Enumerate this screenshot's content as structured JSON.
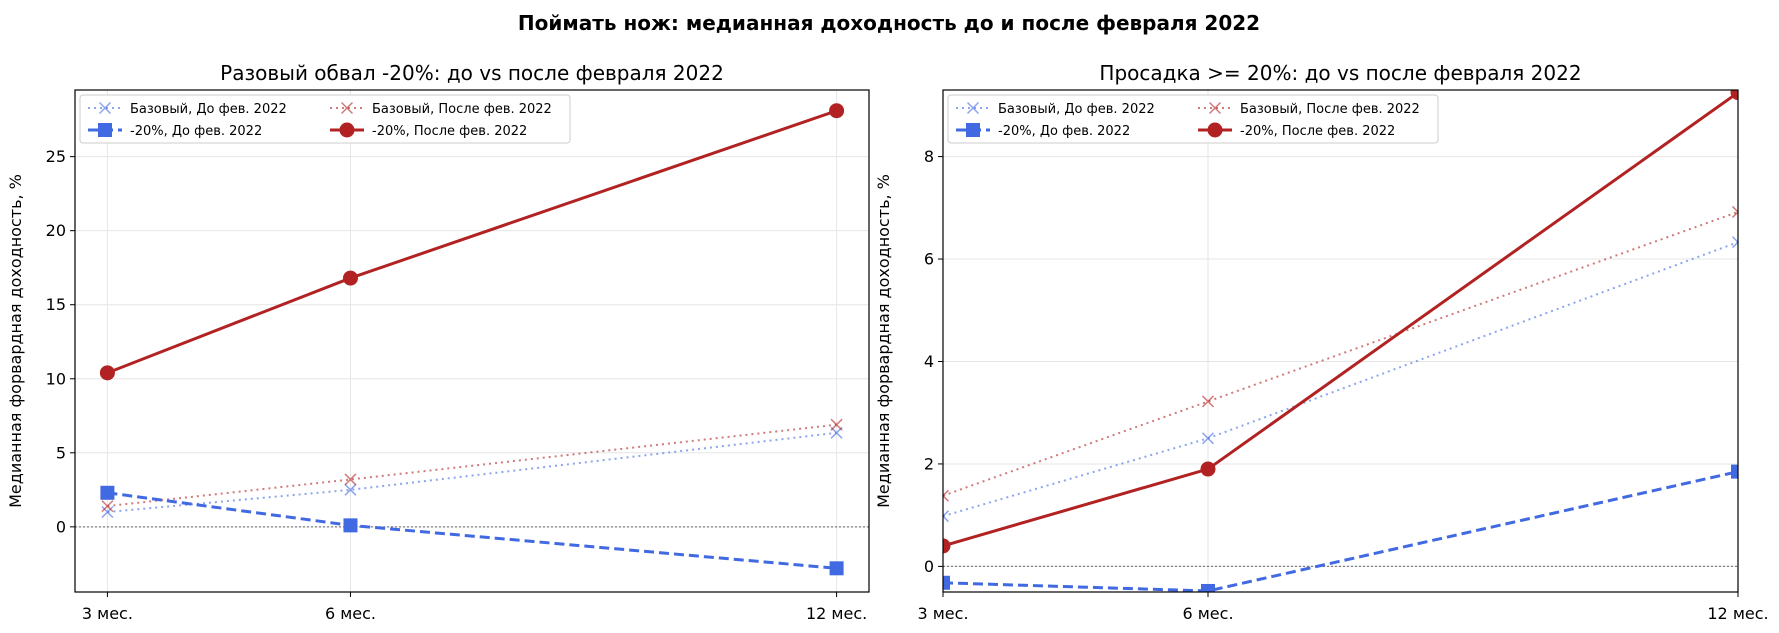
{
  "suptitle": "Поймать нож: медианная доходность до и после февраля 2022",
  "chart_data": [
    {
      "type": "line",
      "title": "Разовый обвал -20%: до vs после февраля 2022",
      "ylabel": "Медианная форвардная доходность, %",
      "xlabel": "",
      "x": [
        3,
        6,
        12
      ],
      "x_tick_labels": [
        "3 мес.",
        "6 мес.",
        "12 мес."
      ],
      "xlim": [
        2.6,
        12.4
      ],
      "ylim": [
        -4.4,
        29.5
      ],
      "y_ticks": [
        0,
        5,
        10,
        15,
        20,
        25
      ],
      "grid": true,
      "zero_line": true,
      "legend_position": "top-left",
      "series": [
        {
          "name": "Базовый, До фев. 2022",
          "values": [
            1.0,
            2.5,
            6.35
          ],
          "color": "#4169e1",
          "alpha": 0.6,
          "style": "dotted",
          "marker": "x"
        },
        {
          "name": "Базовый, После фев. 2022",
          "values": [
            1.4,
            3.2,
            6.9
          ],
          "color": "#b22222",
          "alpha": 0.6,
          "style": "dotted",
          "marker": "x"
        },
        {
          "name": "-20%, До фев. 2022",
          "values": [
            2.3,
            0.1,
            -2.8
          ],
          "color": "#4169e1",
          "alpha": 1,
          "style": "dashed",
          "marker": "square"
        },
        {
          "name": "-20%, После фев. 2022",
          "values": [
            10.4,
            16.8,
            28.1
          ],
          "color": "#b22222",
          "alpha": 1,
          "style": "solid",
          "marker": "circle"
        }
      ]
    },
    {
      "type": "line",
      "title": "Просадка >= 20%: до vs после февраля 2022",
      "ylabel": "Медианная форвардная доходность, %",
      "xlabel": "",
      "x": [
        3,
        6,
        12
      ],
      "x_tick_labels": [
        "3 мес.",
        "6 мес.",
        "12 мес."
      ],
      "xlim": [
        3,
        12
      ],
      "ylim": [
        -0.5,
        9.3
      ],
      "y_ticks": [
        0,
        2,
        4,
        6,
        8
      ],
      "grid": true,
      "zero_line": true,
      "legend_position": "top-left",
      "series": [
        {
          "name": "Базовый, До фев. 2022",
          "values": [
            0.98,
            2.5,
            6.33
          ],
          "color": "#4169e1",
          "alpha": 0.6,
          "style": "dotted",
          "marker": "x"
        },
        {
          "name": "Базовый, После фев. 2022",
          "values": [
            1.38,
            3.22,
            6.92
          ],
          "color": "#b22222",
          "alpha": 0.6,
          "style": "dotted",
          "marker": "x"
        },
        {
          "name": "-20%, До фев. 2022",
          "values": [
            -0.32,
            -0.48,
            1.85
          ],
          "color": "#4169e1",
          "alpha": 1,
          "style": "dashed",
          "marker": "square"
        },
        {
          "name": "-20%, После фев. 2022",
          "values": [
            0.4,
            1.9,
            9.25
          ],
          "color": "#b22222",
          "alpha": 1,
          "style": "solid",
          "marker": "circle"
        }
      ]
    }
  ]
}
